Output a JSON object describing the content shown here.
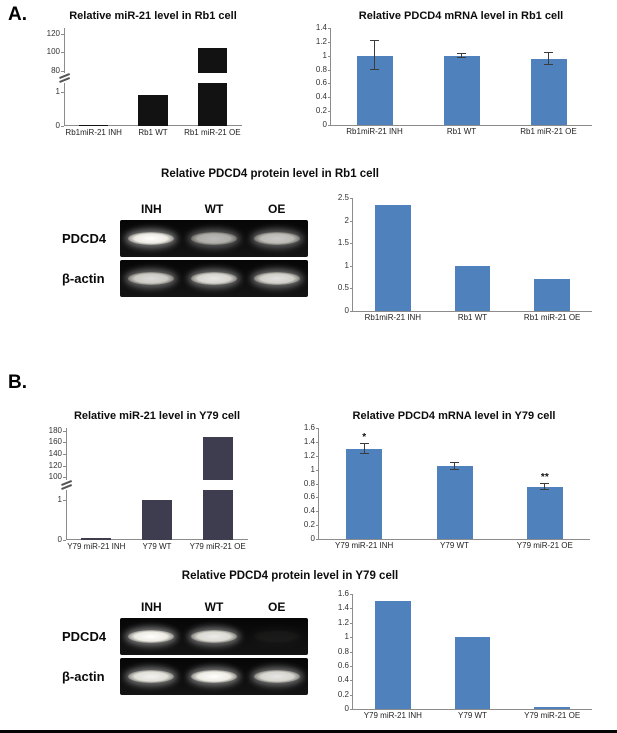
{
  "panels": {
    "a": {
      "label": "A."
    },
    "b": {
      "label": "B."
    }
  },
  "blots": [
    {
      "lane_labels": [
        "INH",
        "WT",
        "OE"
      ],
      "rows": [
        {
          "label": "PDCD4",
          "band_intensities": [
            1.0,
            0.72,
            0.78
          ]
        },
        {
          "label": "β-actin",
          "band_intensities": [
            0.85,
            0.9,
            0.88
          ]
        }
      ]
    },
    {
      "lane_labels": [
        "INH",
        "WT",
        "OE"
      ],
      "rows": [
        {
          "label": "PDCD4",
          "band_intensities": [
            1.0,
            0.92,
            0.05
          ]
        },
        {
          "label": "β-actin",
          "band_intensities": [
            0.95,
            1.0,
            0.9
          ]
        }
      ]
    }
  ],
  "chart_data": [
    {
      "type": "bar",
      "variant": "broken",
      "title": "Relative miR-21 level in Rb1 cell",
      "categories": [
        "Rb1miR-21 INH",
        "Rb1 WT",
        "Rb1 miR-21 OE"
      ],
      "values": [
        0.03,
        0.9,
        105
      ],
      "bar_color": "#121212",
      "lower_ticks": [
        0,
        1
      ],
      "lower_max": 1.25,
      "upper_ticks": [
        80,
        100,
        120
      ],
      "upper_range": [
        78,
        126
      ],
      "xlabel": "",
      "ylabel": "",
      "grid": false,
      "legend": false
    },
    {
      "type": "bar",
      "title": "Relative PDCD4 mRNA level in Rb1 cell",
      "categories": [
        "Rb1miR-21 INH",
        "Rb1 WT",
        "Rb1 miR-21 OE"
      ],
      "values": [
        1.0,
        1.0,
        0.95
      ],
      "errors": [
        0.21,
        0.03,
        0.09
      ],
      "ylim": [
        0,
        1.4
      ],
      "ytick_step": 0.2,
      "bar_color": "#4f81bd",
      "xlabel": "",
      "ylabel": "",
      "grid": false,
      "legend": false
    },
    {
      "type": "bar",
      "title": "Relative PDCD4 protein level in Rb1 cell",
      "categories": [
        "Rb1miR-21 INH",
        "Rb1 WT",
        "Rb1 miR-21 OE"
      ],
      "values": [
        2.35,
        1.0,
        0.7
      ],
      "ylim": [
        0,
        2.5
      ],
      "ytick_step": 0.5,
      "bar_color": "#4f81bd",
      "xlabel": "",
      "ylabel": "",
      "grid": false,
      "legend": false
    },
    {
      "type": "bar",
      "variant": "broken",
      "title": "Relative miR-21 level in Y79 cell",
      "categories": [
        "Y79 miR-21 INH",
        "Y79 WT",
        "Y79 miR-21 OE"
      ],
      "values": [
        0.05,
        1.0,
        170
      ],
      "bar_color": "#3d3d4f",
      "lower_ticks": [
        0,
        1
      ],
      "lower_max": 1.25,
      "upper_ticks": [
        100,
        120,
        140,
        160,
        180
      ],
      "upper_range": [
        95,
        185
      ],
      "xlabel": "",
      "ylabel": "",
      "grid": false,
      "legend": false
    },
    {
      "type": "bar",
      "title": "Relative PDCD4 mRNA level in Y79 cell",
      "categories": [
        "Y79 miR-21 INH",
        "Y79 WT",
        "Y79 miR-21 OE"
      ],
      "values": [
        1.3,
        1.05,
        0.75
      ],
      "errors": [
        0.07,
        0.05,
        0.04
      ],
      "annotations": [
        "*",
        "",
        "**"
      ],
      "ylim": [
        0,
        1.6
      ],
      "ytick_step": 0.2,
      "bar_color": "#4f81bd",
      "xlabel": "",
      "ylabel": "",
      "grid": false,
      "legend": false
    },
    {
      "type": "bar",
      "title": "Relative PDCD4 protein level in Y79 cell",
      "categories": [
        "Y79 miR-21 INH",
        "Y79 WT",
        "Y79 miR-21 OE"
      ],
      "values": [
        1.5,
        1.0,
        0.03
      ],
      "ylim": [
        0,
        1.6
      ],
      "ytick_step": 0.2,
      "bar_color": "#4f81bd",
      "xlabel": "",
      "ylabel": "",
      "grid": false,
      "legend": false
    }
  ]
}
